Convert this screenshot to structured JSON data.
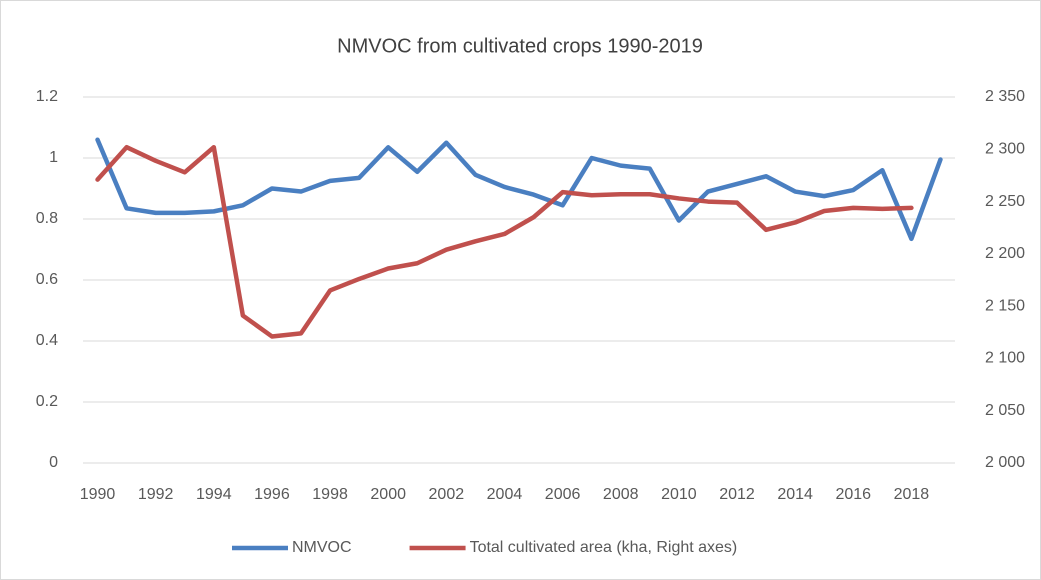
{
  "chart_data": {
    "type": "line",
    "title": "NMVOC from cultivated crops 1990-2019",
    "categories": [
      "1990",
      null,
      "1992",
      null,
      "1994",
      null,
      "1996",
      null,
      "1998",
      null,
      "2000",
      null,
      "2002",
      null,
      "2004",
      null,
      "2006",
      null,
      "2008",
      null,
      "2010",
      null,
      "2012",
      null,
      "2014",
      null,
      "2016",
      null,
      "2018",
      null
    ],
    "series": [
      {
        "name": "NMVOC",
        "color": "#4a7fc1",
        "values": [
          1.06,
          0.835,
          0.82,
          0.82,
          0.825,
          0.845,
          0.9,
          0.89,
          0.925,
          0.935,
          1.035,
          0.955,
          1.05,
          0.945,
          0.905,
          0.88,
          0.845,
          1.0,
          0.975,
          0.965,
          0.795,
          0.89,
          0.915,
          0.94,
          0.89,
          0.875,
          0.895,
          0.96,
          0.735,
          0.995
        ]
      },
      {
        "name": "Total cultivated area (kha, Right axes)",
        "color": "#c0504d",
        "axis": "y2",
        "values": [
          2271,
          2302,
          2289,
          2278,
          2302,
          2141,
          2121,
          2124,
          2165,
          2176,
          2186,
          2191,
          2204,
          2212,
          2219,
          2235,
          2259,
          2256,
          2257,
          2257,
          2253,
          2250,
          2249,
          2223,
          2230,
          2241,
          2244,
          2243,
          2244,
          null
        ]
      }
    ],
    "ylim": [
      0,
      1.2
    ],
    "yticks": [
      0,
      0.2,
      0.4,
      0.6,
      0.8,
      1,
      1.2
    ],
    "y2lim": [
      2000,
      2350
    ],
    "y2ticks": [
      {
        "value": 2000,
        "label": "2 000"
      },
      {
        "value": 2050,
        "label": "2 050"
      },
      {
        "value": 2100,
        "label": "2 100"
      },
      {
        "value": 2150,
        "label": "2 150"
      },
      {
        "value": 2200,
        "label": "2 200"
      },
      {
        "value": 2250,
        "label": "2 250"
      },
      {
        "value": 2300,
        "label": "2 300"
      },
      {
        "value": 2350,
        "label": "2 350"
      }
    ],
    "grid": true,
    "legend": "bottom"
  }
}
